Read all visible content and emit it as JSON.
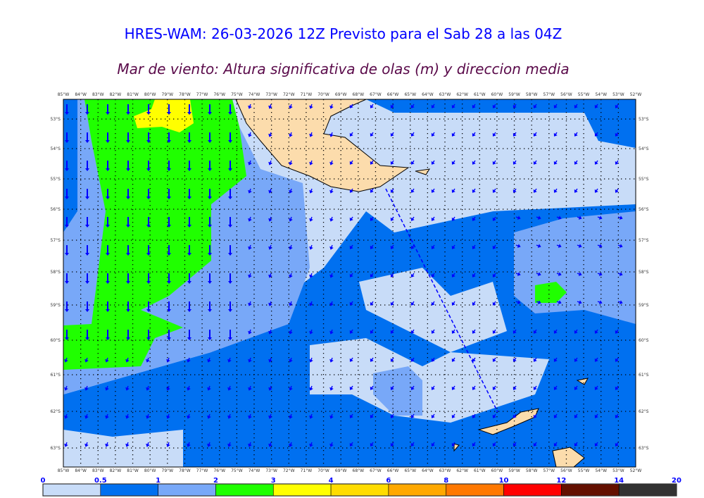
{
  "title": "HRES-WAM: 26-03-2026 12Z Previsto para el Sab 28 a las 04Z",
  "subtitle": "Mar de viento: Altura significativa de olas (m) y direccion media",
  "map": {
    "lon_labels": [
      "85°W",
      "84°W",
      "83°W",
      "82°W",
      "81°W",
      "80°W",
      "79°W",
      "78°W",
      "77°W",
      "76°W",
      "75°W",
      "74°W",
      "73°W",
      "72°W",
      "71°W",
      "70°W",
      "69°W",
      "68°W",
      "67°W",
      "66°W",
      "65°W",
      "64°W",
      "63°W",
      "62°W",
      "61°W",
      "60°W",
      "59°W",
      "58°W",
      "57°W",
      "56°W",
      "55°W",
      "54°W",
      "53°W",
      "52°W"
    ],
    "lat_labels": [
      "53°S",
      "54°S",
      "55°S",
      "56°S",
      "57°S",
      "58°S",
      "59°S",
      "60°S",
      "61°S",
      "62°S",
      "63°S"
    ],
    "colors": {
      "land": "#fcdcac",
      "grid": "#000000",
      "arrow": "#0000ff"
    }
  },
  "legend": {
    "ticks": [
      "0",
      "0.5",
      "1",
      "2",
      "3",
      "4",
      "6",
      "8",
      "10",
      "12",
      "14",
      "20"
    ],
    "colors": [
      "#c8dcf8",
      "#0070f0",
      "#78a8f8",
      "#20ff00",
      "#ffff00",
      "#ffdc00",
      "#ffa800",
      "#ff7800",
      "#ff0000",
      "#641000",
      "#323232"
    ]
  }
}
